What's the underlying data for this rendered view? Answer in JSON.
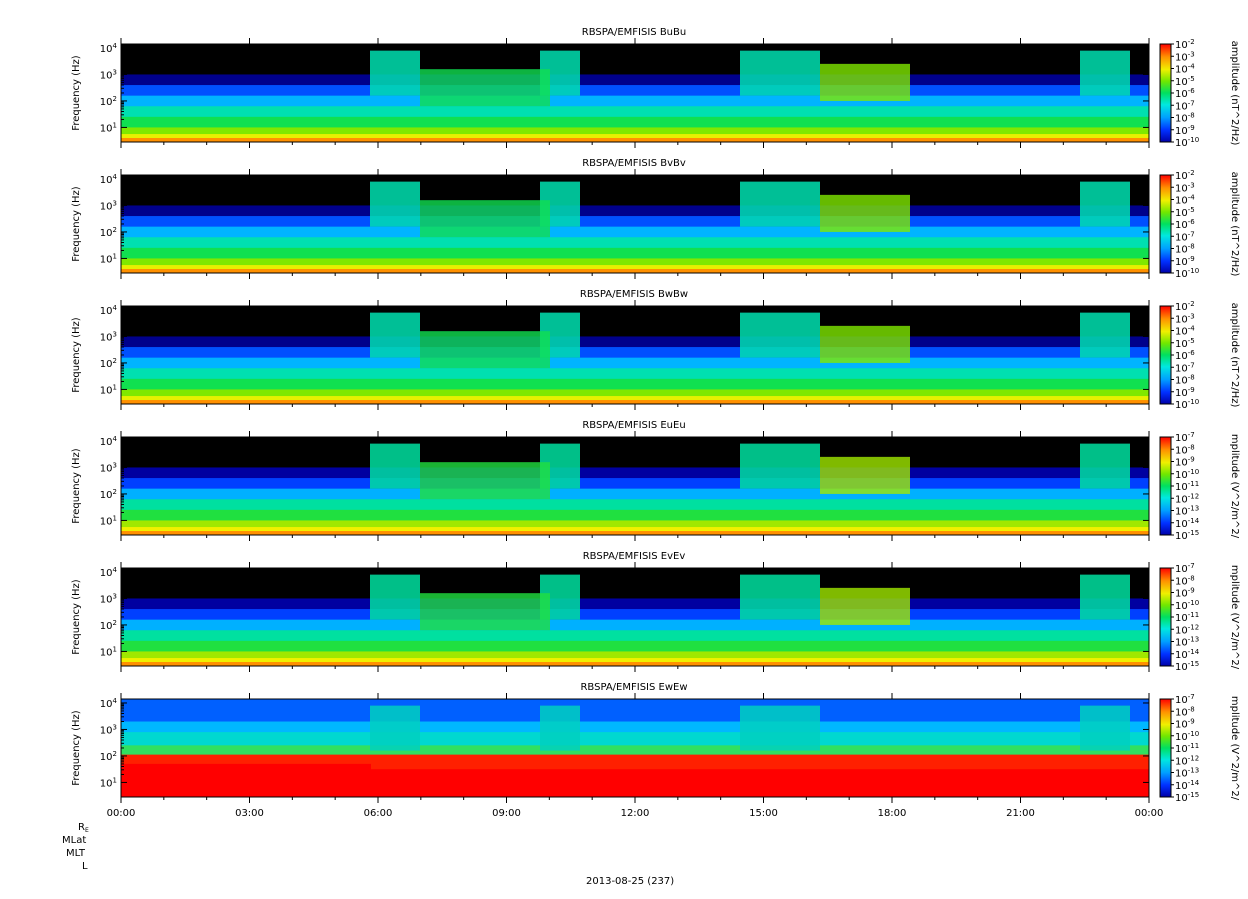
{
  "chart_data": {
    "type": "heatmap",
    "date_label": "2013-08-25 (237)",
    "x_ticks": [
      "00:00",
      "03:00",
      "06:00",
      "09:00",
      "12:00",
      "15:00",
      "18:00",
      "21:00",
      "00:00"
    ],
    "y_ticks": [
      "10^1",
      "10^2",
      "10^3",
      "10^4"
    ],
    "y_label": "Frequency (Hz)",
    "orbit_labels": [
      "RE",
      "MLat",
      "MLT",
      "L"
    ],
    "panels": [
      {
        "title": "RBSPA/EMFISIS  BuBu",
        "colorbar_label": "amplitude (nT^2/Hz)",
        "colorbar_ticks": [
          "10^-2",
          "10^-3",
          "10^-4",
          "10^-5",
          "10^-6",
          "10^-7",
          "10^-8",
          "10^-9",
          "10^-10"
        ],
        "kind": "B"
      },
      {
        "title": "RBSPA/EMFISIS  BvBv",
        "colorbar_label": "amplitude (nT^2/Hz)",
        "colorbar_ticks": [
          "10^-2",
          "10^-3",
          "10^-4",
          "10^-5",
          "10^-6",
          "10^-7",
          "10^-8",
          "10^-9",
          "10^-10"
        ],
        "kind": "B"
      },
      {
        "title": "RBSPA/EMFISIS  BwBw",
        "colorbar_label": "amplitude (nT^2/Hz)",
        "colorbar_ticks": [
          "10^-2",
          "10^-3",
          "10^-4",
          "10^-5",
          "10^-6",
          "10^-7",
          "10^-8",
          "10^-9",
          "10^-10"
        ],
        "kind": "B"
      },
      {
        "title": "RBSPA/EMFISIS  EuEu",
        "colorbar_label": "mplitude (V^2/m^2/",
        "colorbar_ticks": [
          "10^-7",
          "10^-8",
          "10^-9",
          "10^-10",
          "10^-11",
          "10^-12",
          "10^-13",
          "10^-14",
          "10^-15"
        ],
        "kind": "E"
      },
      {
        "title": "RBSPA/EMFISIS  EvEv",
        "colorbar_label": "mplitude (V^2/m^2/",
        "colorbar_ticks": [
          "10^-7",
          "10^-8",
          "10^-9",
          "10^-10",
          "10^-11",
          "10^-12",
          "10^-13",
          "10^-14",
          "10^-15"
        ],
        "kind": "E"
      },
      {
        "title": "RBSPA/EMFISIS  EwEw",
        "colorbar_label": "mplitude (V^2/m^2/",
        "colorbar_ticks": [
          "10^-7",
          "10^-8",
          "10^-9",
          "10^-10",
          "10^-11",
          "10^-12",
          "10^-13",
          "10^-14",
          "10^-15"
        ],
        "kind": "Ew"
      }
    ]
  }
}
